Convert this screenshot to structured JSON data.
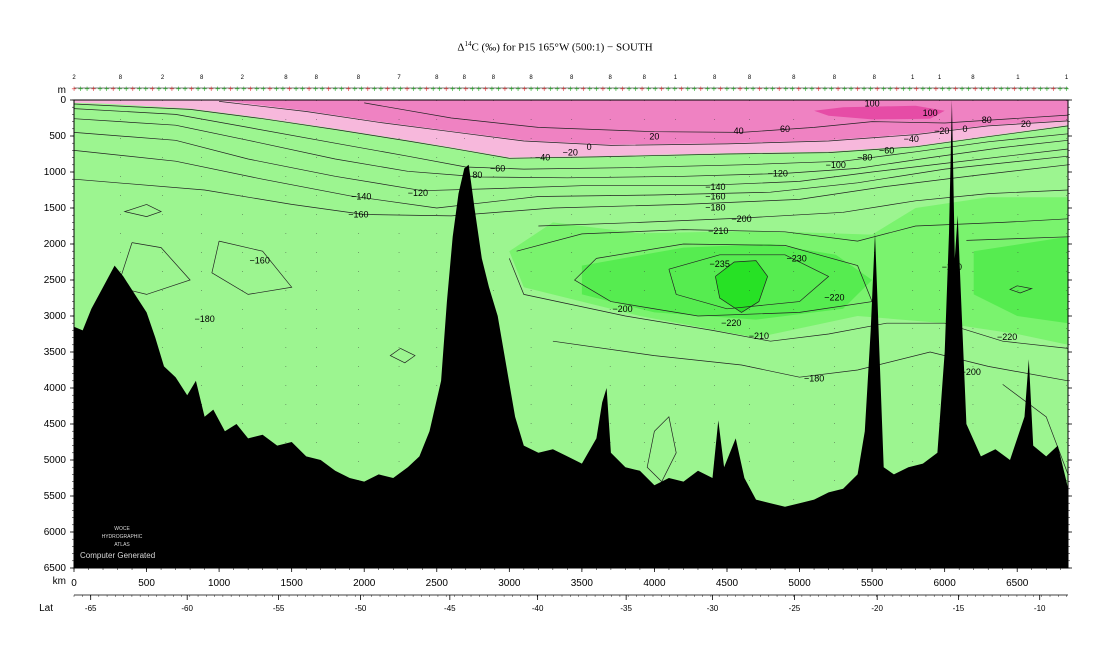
{
  "chart_data": {
    "type": "heatmap",
    "title_prefix": "Δ",
    "title_sup": "14",
    "title_rest": "C (‰) for P15 165°W (500:1) − SOUTH",
    "y_unit_label": "m",
    "x_unit_label": "km",
    "lat_label": "Lat",
    "xlim": [
      0,
      6850
    ],
    "ylim": [
      0,
      6500
    ],
    "depth_ticks": [
      0,
      500,
      1000,
      1500,
      2000,
      2500,
      3000,
      3500,
      4000,
      4500,
      5000,
      5500,
      6000,
      6500
    ],
    "distance_ticks": [
      0,
      500,
      1000,
      1500,
      2000,
      2500,
      3000,
      3500,
      4000,
      4500,
      5000,
      5500,
      6000,
      6500
    ],
    "lat_ticks": [
      {
        "km": 115,
        "label": "-65"
      },
      {
        "km": 780,
        "label": "-60"
      },
      {
        "km": 1410,
        "label": "-55"
      },
      {
        "km": 1975,
        "label": "-50"
      },
      {
        "km": 2590,
        "label": "-45"
      },
      {
        "km": 3195,
        "label": "-40"
      },
      {
        "km": 3805,
        "label": "-35"
      },
      {
        "km": 4400,
        "label": "-30"
      },
      {
        "km": 4965,
        "label": "-25"
      },
      {
        "km": 5535,
        "label": "-20"
      },
      {
        "km": 6095,
        "label": "-15"
      },
      {
        "km": 6655,
        "label": "-10"
      }
    ],
    "stations": [
      {
        "km": 0,
        "label": "2"
      },
      {
        "km": 320,
        "label": "8"
      },
      {
        "km": 610,
        "label": "2"
      },
      {
        "km": 880,
        "label": "8"
      },
      {
        "km": 1160,
        "label": "2"
      },
      {
        "km": 1460,
        "label": "8"
      },
      {
        "km": 1670,
        "label": "8"
      },
      {
        "km": 1960,
        "label": "8"
      },
      {
        "km": 2240,
        "label": "7"
      },
      {
        "km": 2500,
        "label": "8"
      },
      {
        "km": 2690,
        "label": "8"
      },
      {
        "km": 2890,
        "label": "8"
      },
      {
        "km": 3150,
        "label": "8"
      },
      {
        "km": 3430,
        "label": "8"
      },
      {
        "km": 3695,
        "label": "8"
      },
      {
        "km": 3930,
        "label": "8"
      },
      {
        "km": 4145,
        "label": "1"
      },
      {
        "km": 4415,
        "label": "8"
      },
      {
        "km": 4655,
        "label": "8"
      },
      {
        "km": 4960,
        "label": "8"
      },
      {
        "km": 5240,
        "label": "8"
      },
      {
        "km": 5515,
        "label": "8"
      },
      {
        "km": 5780,
        "label": "1"
      },
      {
        "km": 5965,
        "label": "1"
      },
      {
        "km": 6195,
        "label": "8"
      },
      {
        "km": 6505,
        "label": "1"
      },
      {
        "km": 6840,
        "label": "1"
      }
    ],
    "contour_labels": [
      {
        "x": 5500,
        "y": 50,
        "text": "100"
      },
      {
        "x": 5900,
        "y": 180,
        "text": "100"
      },
      {
        "x": 6290,
        "y": 280,
        "text": "80"
      },
      {
        "x": 6560,
        "y": 330,
        "text": "20"
      },
      {
        "x": 5980,
        "y": 430,
        "text": "−20"
      },
      {
        "x": 6140,
        "y": 400,
        "text": "0"
      },
      {
        "x": 5770,
        "y": 540,
        "text": "−40"
      },
      {
        "x": 4580,
        "y": 430,
        "text": "40"
      },
      {
        "x": 4900,
        "y": 400,
        "text": "60"
      },
      {
        "x": 4000,
        "y": 510,
        "text": "20"
      },
      {
        "x": 3550,
        "y": 650,
        "text": "0"
      },
      {
        "x": 3420,
        "y": 730,
        "text": "−20"
      },
      {
        "x": 3230,
        "y": 800,
        "text": "−40"
      },
      {
        "x": 2920,
        "y": 950,
        "text": "−60"
      },
      {
        "x": 2780,
        "y": 1040,
        "text": "80"
      },
      {
        "x": 5600,
        "y": 700,
        "text": "−60"
      },
      {
        "x": 5450,
        "y": 800,
        "text": "−80"
      },
      {
        "x": 5250,
        "y": 900,
        "text": "−100"
      },
      {
        "x": 4850,
        "y": 1020,
        "text": "−120"
      },
      {
        "x": 2370,
        "y": 1290,
        "text": "−120"
      },
      {
        "x": 1980,
        "y": 1340,
        "text": "−140"
      },
      {
        "x": 1960,
        "y": 1590,
        "text": "−160"
      },
      {
        "x": 4420,
        "y": 1210,
        "text": "−140"
      },
      {
        "x": 4420,
        "y": 1340,
        "text": "−160"
      },
      {
        "x": 4420,
        "y": 1490,
        "text": "−180"
      },
      {
        "x": 4600,
        "y": 1650,
        "text": "−200"
      },
      {
        "x": 4440,
        "y": 1820,
        "text": "−210"
      },
      {
        "x": 4980,
        "y": 2200,
        "text": "−230"
      },
      {
        "x": 4450,
        "y": 2280,
        "text": "−235"
      },
      {
        "x": 1280,
        "y": 2230,
        "text": "−160"
      },
      {
        "x": 6050,
        "y": 2320,
        "text": "−230"
      },
      {
        "x": 5240,
        "y": 2740,
        "text": "−220"
      },
      {
        "x": 3780,
        "y": 2900,
        "text": "−200"
      },
      {
        "x": 4530,
        "y": 3100,
        "text": "−220"
      },
      {
        "x": 4720,
        "y": 3280,
        "text": "−210"
      },
      {
        "x": 900,
        "y": 3040,
        "text": "−180"
      },
      {
        "x": 5100,
        "y": 3870,
        "text": "−180"
      },
      {
        "x": 6430,
        "y": 3290,
        "text": "−220"
      },
      {
        "x": 6180,
        "y": 3780,
        "text": "−200"
      }
    ],
    "legend": "none",
    "colors": {
      "positive_strong": "#e64ca6",
      "positive": "#ef82c2",
      "near_zero": "#f7b8dc",
      "background_negative": "#9cf590",
      "negative_mid": "#7af36e",
      "negative_strong": "#56ec50",
      "core_minimum": "#27e125",
      "bathymetry": "#000000"
    }
  },
  "watermark": {
    "lines": [
      "WOCE",
      "HYDROGRAPHIC",
      "ATLAS"
    ],
    "caption": "Computer Generated"
  }
}
